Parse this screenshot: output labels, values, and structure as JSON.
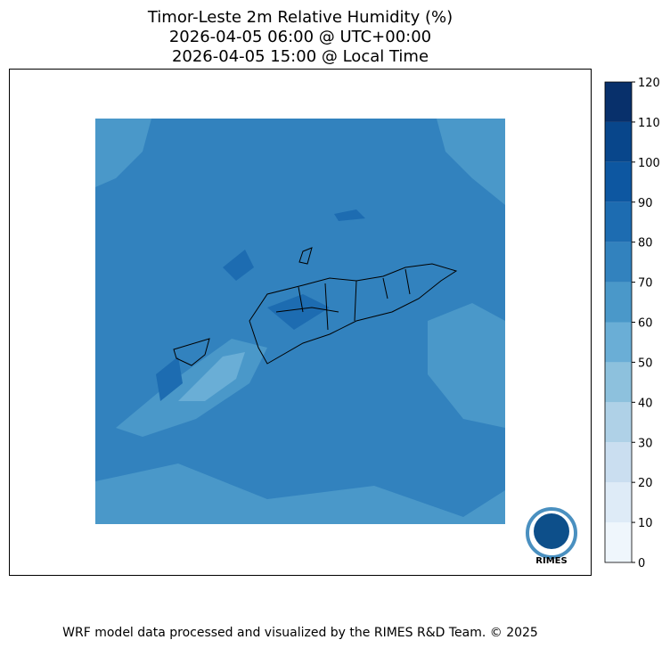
{
  "title": [
    "Timor-Leste 2m Relative Humidity (%)",
    "2026-04-05 06:00 @ UTC+00:00",
    "2026-04-05 15:00 @ Local Time"
  ],
  "colorbar": {
    "ticks": [
      0,
      10,
      20,
      30,
      40,
      50,
      60,
      70,
      80,
      90,
      100,
      110,
      120
    ],
    "colors": [
      "#eff6fc",
      "#deebf7",
      "#cadef0",
      "#afd1e7",
      "#8dc1dd",
      "#6aaed6",
      "#4a98c9",
      "#3282be",
      "#1d6cb1",
      "#0d57a1",
      "#08468b",
      "#08306b"
    ]
  },
  "logo": "RIMES",
  "footer": "WRF model data processed and visualized by the RIMES R&D Team. © 2025"
}
